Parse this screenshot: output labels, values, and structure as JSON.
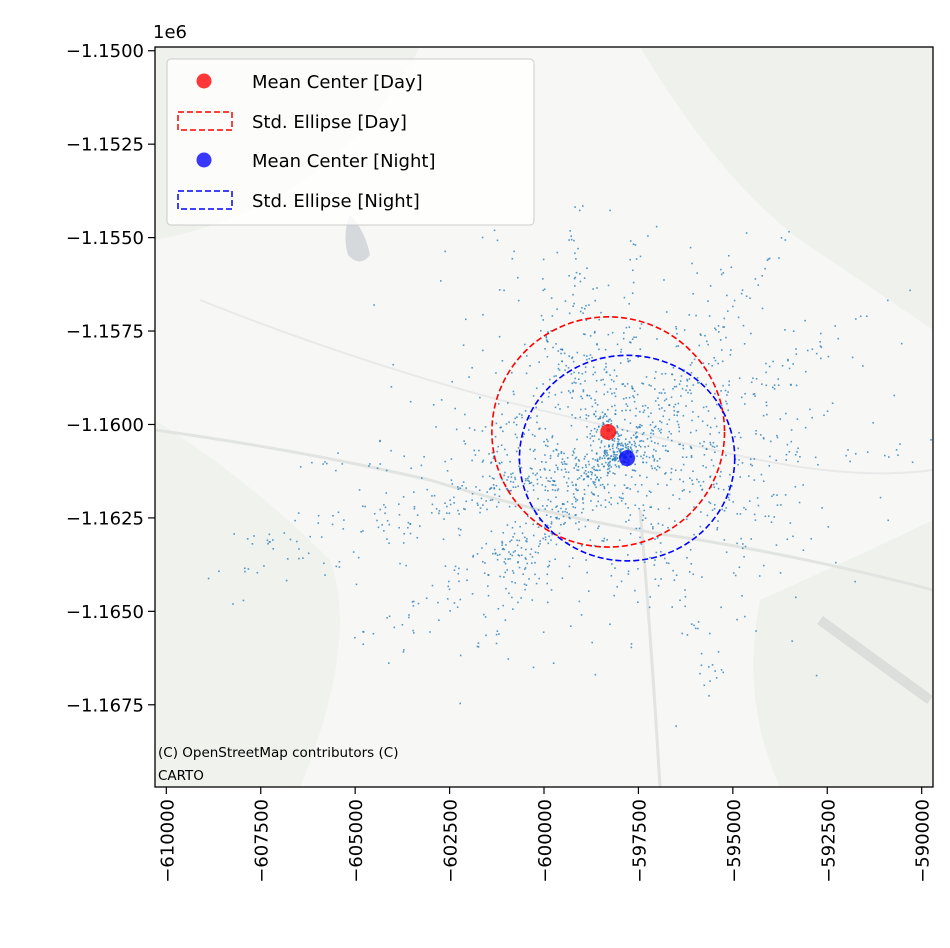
{
  "chart_data": {
    "type": "scatter",
    "title": "",
    "xlabel": "",
    "ylabel": "",
    "xlim": [
      -610300,
      -589700
    ],
    "ylim": [
      -1169700,
      -1149900
    ],
    "y_offset_label": "1e6",
    "x_ticks": [
      -610000,
      -607500,
      -605000,
      -602500,
      -600000,
      -597500,
      -595000,
      -592500,
      -590000
    ],
    "x_tick_labels": [
      "−610000",
      "−607500",
      "−605000",
      "−602500",
      "−600000",
      "−597500",
      "−595000",
      "−592500",
      "−590000"
    ],
    "y_ticks": [
      -1150000,
      -1152500,
      -1155000,
      -1157500,
      -1160000,
      -1162500,
      -1165000,
      -1167500
    ],
    "y_tick_labels": [
      "−1.1500",
      "−1.1525",
      "−1.1550",
      "−1.1575",
      "−1.1600",
      "−1.1625",
      "−1.1650",
      "−1.1675"
    ],
    "basemap_attribution": [
      "(C) OpenStreetMap contributors (C)",
      "CARTO"
    ],
    "points_color": "#1f77b4",
    "series": [
      {
        "name": "Mean Center [Day]",
        "kind": "point",
        "color": "#ff0000",
        "x": -598300,
        "y": -1160200
      },
      {
        "name": "Std. Ellipse [Day]",
        "kind": "ellipse",
        "color": "#ff0000",
        "center": [
          -598300,
          -1160200
        ],
        "semi_x": 3080,
        "semi_y": 3080
      },
      {
        "name": "Mean Center [Night]",
        "kind": "point",
        "color": "#0000ff",
        "x": -597800,
        "y": -1160900
      },
      {
        "name": "Std. Ellipse [Night]",
        "kind": "ellipse",
        "color": "#0000ff",
        "center": [
          -597800,
          -1160900
        ],
        "semi_x": 2850,
        "semi_y": 2750
      }
    ],
    "legend_position": "top-left",
    "grid": false
  }
}
